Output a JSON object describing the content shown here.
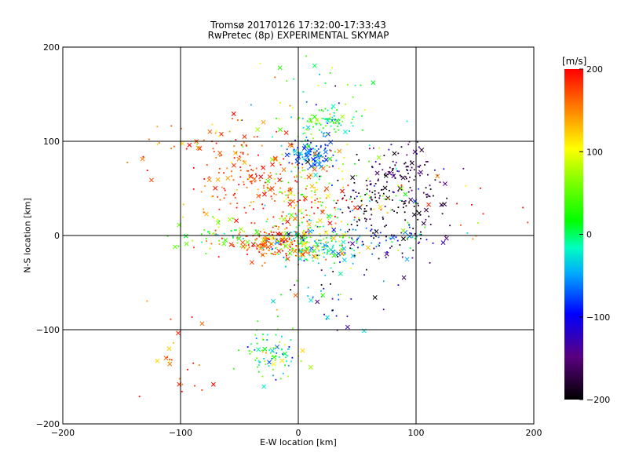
{
  "chart_data": {
    "type": "scatter",
    "title": "Tromsø 20170126 17:32:00-17:33:43",
    "subtitle": "RwPretec (8p) EXPERIMENTAL SKYMAP",
    "xlabel": "E-W location [km]",
    "ylabel": "N-S location [km]",
    "xlim": [
      -200,
      200
    ],
    "ylim": [
      -200,
      200
    ],
    "xticks": [
      -200,
      -100,
      0,
      100,
      200
    ],
    "yticks": [
      -200,
      -100,
      0,
      100,
      200
    ],
    "grid": true,
    "colorbar": {
      "label": "[m/s]",
      "range": [
        -200,
        200
      ],
      "ticks": [
        200,
        100,
        0,
        -100,
        -200
      ],
      "colormap": "black-purple-blue-cyan-green-yellow-red"
    },
    "markers": [
      "dot",
      "cross"
    ],
    "clusters": [
      {
        "x": 10,
        "y": 85,
        "sx": 10,
        "sy": 8,
        "n": 120,
        "v": -70,
        "dv": 25
      },
      {
        "x": 25,
        "y": 122,
        "sx": 12,
        "sy": 6,
        "n": 60,
        "v": 20,
        "dv": 30
      },
      {
        "x": -40,
        "y": 50,
        "sx": 25,
        "sy": 25,
        "n": 150,
        "v": 180,
        "dv": 25
      },
      {
        "x": 10,
        "y": 45,
        "sx": 20,
        "sy": 30,
        "n": 140,
        "v": 110,
        "dv": 60
      },
      {
        "x": 75,
        "y": 40,
        "sx": 25,
        "sy": 25,
        "n": 160,
        "v": -185,
        "dv": 20
      },
      {
        "x": 90,
        "y": 70,
        "sx": 18,
        "sy": 15,
        "n": 70,
        "v": -160,
        "dv": 30
      },
      {
        "x": -20,
        "y": -10,
        "sx": 20,
        "sy": 8,
        "n": 160,
        "v": 170,
        "dv": 35
      },
      {
        "x": 10,
        "y": -10,
        "sx": 20,
        "sy": 10,
        "n": 180,
        "v": 0,
        "dv": 60
      },
      {
        "x": 70,
        "y": -5,
        "sx": 25,
        "sy": 10,
        "n": 70,
        "v": -100,
        "dv": 50
      },
      {
        "x": -20,
        "y": -125,
        "sx": 15,
        "sy": 15,
        "n": 90,
        "v": 10,
        "dv": 50
      },
      {
        "x": -100,
        "y": -135,
        "sx": 15,
        "sy": 25,
        "n": 25,
        "v": 170,
        "dv": 30
      },
      {
        "x": 15,
        "y": 130,
        "sx": 25,
        "sy": 25,
        "n": 60,
        "v": 0,
        "dv": 80
      },
      {
        "x": -60,
        "y": 100,
        "sx": 20,
        "sy": 15,
        "n": 50,
        "v": 160,
        "dv": 40
      },
      {
        "x": 30,
        "y": -70,
        "sx": 25,
        "sy": 20,
        "n": 40,
        "v": -100,
        "dv": 80
      },
      {
        "x": -130,
        "y": 80,
        "sx": 12,
        "sy": 15,
        "n": 10,
        "v": 180,
        "dv": 20
      },
      {
        "x": 150,
        "y": 20,
        "sx": 25,
        "sy": 20,
        "n": 10,
        "v": 160,
        "dv": 40
      },
      {
        "x": -60,
        "y": 0,
        "sx": 20,
        "sy": 10,
        "n": 60,
        "v": 40,
        "dv": 40
      },
      {
        "x": 40,
        "y": 30,
        "sx": 35,
        "sy": 30,
        "n": 120,
        "v": 60,
        "dv": 90
      }
    ]
  }
}
